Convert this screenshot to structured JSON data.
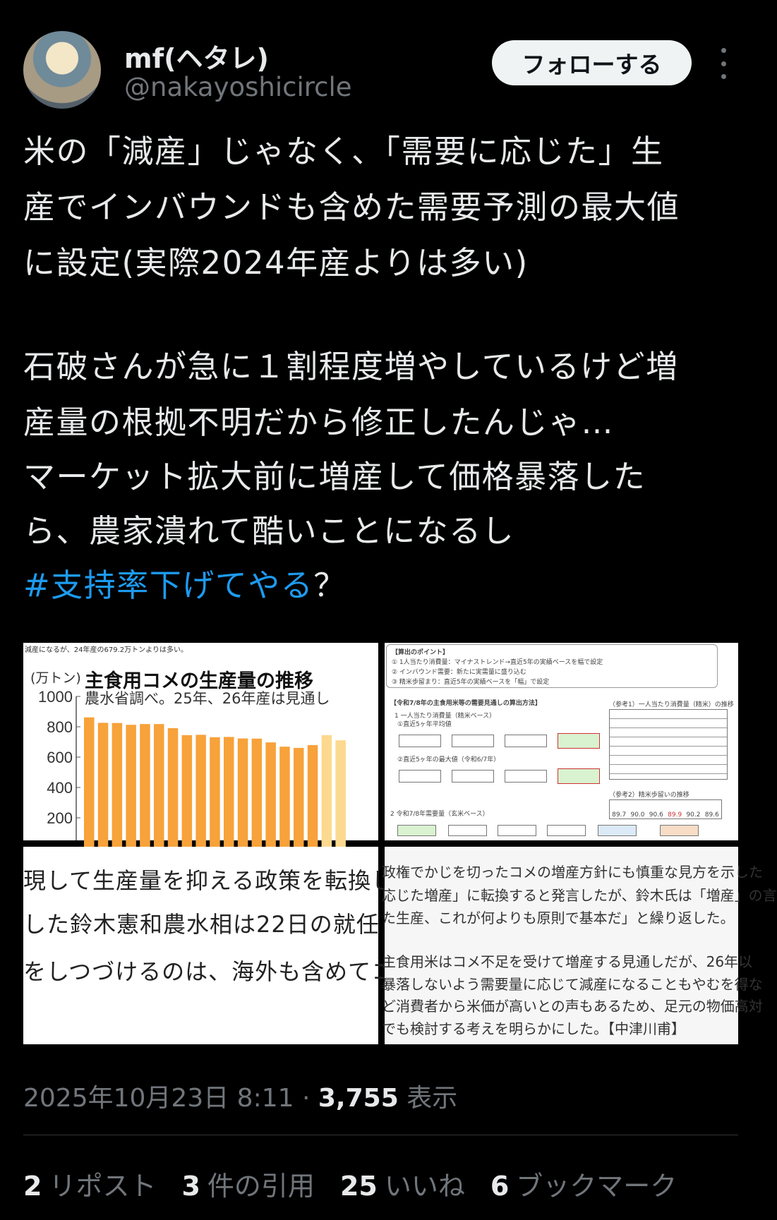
{
  "author": {
    "name": "mf(ヘタレ)",
    "handle": "@nakayoshicircle"
  },
  "follow_label": "フォローする",
  "tweet": {
    "lines": [
      "米の「減産」じゃなく、「需要に応じた」生",
      "産でインバウンドも含めた需要予測の最大値",
      "に設定(実際2024年産よりは多い)",
      "石破さんが急に１割程度増やしているけど増",
      "産量の根拠不明だから修正したんじゃ…",
      "マーケット拡大前に増産して価格暴落した",
      "ら、農家潰れて酷いことになるし"
    ],
    "hashtag": "#支持率下げてやる",
    "tail": "？"
  },
  "media": {
    "chart": {
      "caption": "減産になるが、24年産の679.2万トンよりは多い。",
      "chart_data": {
        "type": "bar",
        "title": "主食用コメの生産量の推移",
        "subtitle": "農水省調べ。25年、26年産は見通し",
        "ylabel": "(万トン)",
        "yticks": [
          "1000",
          "800",
          "600",
          "400",
          "200"
        ],
        "ylim": [
          0,
          1000
        ],
        "values": [
          862,
          826,
          825,
          813,
          818,
          818,
          791,
          745,
          747,
          731,
          733,
          723,
          722,
          697,
          669,
          661,
          679,
          745,
          711
        ],
        "projected_from_index": 17,
        "colors": {
          "actual": "#f7a23a",
          "projected": "#fcd98f"
        }
      }
    },
    "doc": {
      "points_title": "【算出のポイント】",
      "points": [
        "① 1人当たり消費量：マイナストレンド→直近5年の実績ベースを幅で設定",
        "② インバウンド需要：新たに実需量に盛り込む",
        "③ 精米歩留まり：直近5年の実績ベースを「幅」で設定"
      ],
      "method_title": "【令和7/8年の主食用米等の需要見通しの算出方法】",
      "ref1_title": "（参考1）一人当たり消費量（精米）の推移",
      "ref2_title": "（参考2）精米歩留いの推移",
      "sec1": "1 一人当たり消費量（精米ベース）",
      "sec1a": "①直近5ヶ年平均値",
      "sec1b": "②直近5ヶ年の最大値（令和6/7年）",
      "sec2": "2 令和7/8年需要量（玄米ベース）",
      "ref2_values": [
        "89.7",
        "90.0",
        "90.6",
        "89.9",
        "90.2",
        "89.6"
      ]
    },
    "article_left": [
      "現して生産量を抑える政策を転換し",
      "した鈴木憲和農水相は22日の就任",
      "をしつづけるのは、海外も含めてコ"
    ],
    "article_right": [
      "政権でかじを切ったコメの増産方針にも慎重な見方を示した",
      "応じた増産」に転換すると発言したが、鈴木氏は「増産」の言",
      "た生産、これが何よりも原則で基本だ」と繰り返した。",
      "主食用米はコメ不足を受けて増産する見通しだが、26年以",
      "暴落しないよう需要量に応じて減産になることもやむを得な",
      "ど消費者から米価が高いとの声もあるため、足元の物価高対",
      "でも検討する考えを明らかにした。【中津川甫】"
    ]
  },
  "meta": {
    "timestamp": "2025年10月23日 8:11",
    "separator": " · ",
    "views": "3,755",
    "views_label": " 表示"
  },
  "stats": [
    {
      "count": "2",
      "label": "リポスト"
    },
    {
      "count": "3",
      "label": "件の引用"
    },
    {
      "count": "25",
      "label": "いいね"
    },
    {
      "count": "6",
      "label": "ブックマーク"
    }
  ]
}
